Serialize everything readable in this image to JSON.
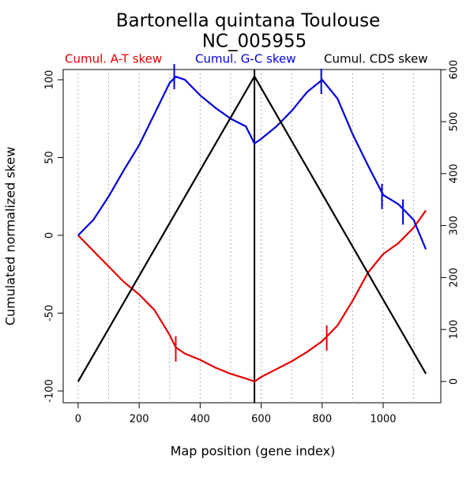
{
  "chart_data": {
    "type": "line",
    "title": "Bartonella quintana Toulouse",
    "subtitle": "NC_005955",
    "x_label": "Map position (gene index)",
    "y_label": "Cumulated normalized skew",
    "xlim": [
      -49,
      1189
    ],
    "xticks": [
      0,
      200,
      400,
      600,
      800,
      1000
    ],
    "xgrid": [
      0,
      100,
      200,
      300,
      400,
      500,
      600,
      700,
      800,
      900,
      1000,
      1100
    ],
    "ylim": [
      -107.6,
      106.6
    ],
    "yticks": [
      -100,
      -50,
      0,
      50,
      100
    ],
    "y2lim": [
      -41,
      600.3
    ],
    "y2ticks": [
      0,
      100,
      200,
      300,
      400,
      500,
      600
    ],
    "vline": 578,
    "series": [
      {
        "name": "Cumul. A-T skew",
        "color": "#e60000",
        "x": [
          0,
          50,
          100,
          150,
          200,
          250,
          300,
          320,
          350,
          400,
          450,
          500,
          550,
          578,
          600,
          650,
          700,
          750,
          800,
          850,
          900,
          950,
          1000,
          1050,
          1100,
          1140
        ],
        "values": [
          0,
          -10,
          -20,
          -30,
          -38,
          -48,
          -64,
          -72,
          -76,
          -80,
          -85,
          -89,
          -92,
          -94,
          -91,
          -86,
          -81,
          -75,
          -68,
          -58,
          -42,
          -24,
          -12,
          -5,
          5,
          16
        ],
        "marker_x": [
          320,
          815
        ],
        "marker_y": [
          -73,
          -66
        ]
      },
      {
        "name": "Cumul. G-C skew",
        "color": "#0000dd",
        "x": [
          0,
          50,
          100,
          150,
          200,
          250,
          300,
          320,
          350,
          400,
          450,
          500,
          550,
          578,
          600,
          650,
          700,
          750,
          800,
          850,
          900,
          950,
          1000,
          1050,
          1100,
          1140
        ],
        "values": [
          0,
          10,
          25,
          42,
          58,
          78,
          98,
          102,
          100,
          90,
          82,
          75,
          70,
          59,
          62,
          70,
          80,
          92,
          100,
          88,
          65,
          45,
          26,
          20,
          10,
          -9
        ],
        "marker_x": [
          315,
          797,
          996,
          1065
        ],
        "marker_y": [
          102,
          99,
          25,
          15
        ]
      },
      {
        "name": "Cumul. CDS skew",
        "color": "#000000",
        "axis": "y2",
        "x": [
          0,
          578,
          1140
        ],
        "values": [
          0,
          587,
          15
        ]
      }
    ]
  }
}
